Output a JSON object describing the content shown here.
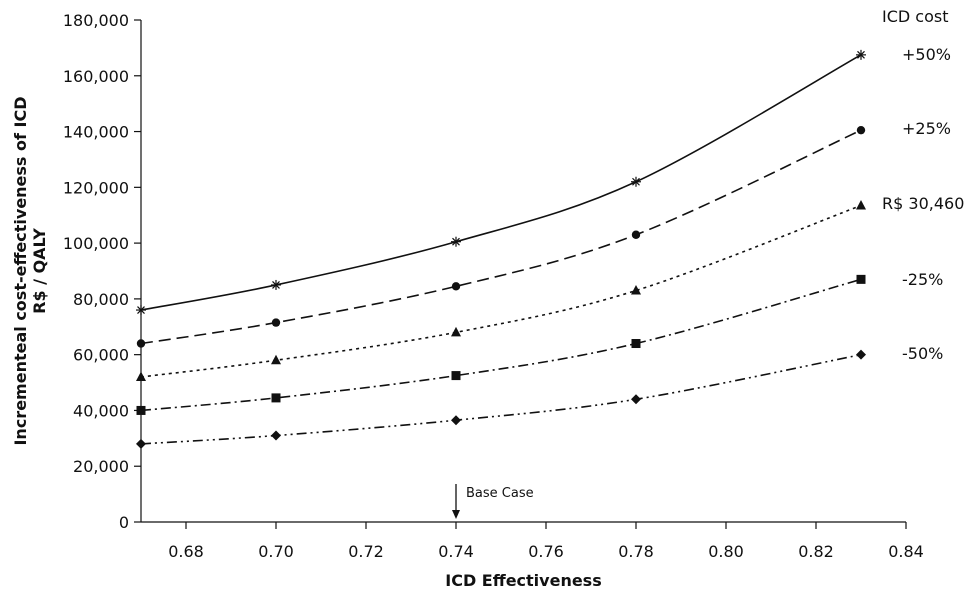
{
  "chart_data": {
    "type": "line",
    "title": "",
    "xlabel": "ICD Effectiveness",
    "ylabel_line1": "Incrementeal cost-effectiveness of ICD",
    "ylabel_line2": "R$ / QALY",
    "xlim": [
      0.67,
      0.84
    ],
    "ylim": [
      0,
      180000
    ],
    "x_ticks": [
      0.68,
      0.7,
      0.72,
      0.74,
      0.76,
      0.78,
      0.8,
      0.82,
      0.84
    ],
    "x_tick_labels": [
      "0.68",
      "0.70",
      "0.72",
      "0.74",
      "0.76",
      "0.78",
      "0.80",
      "0.82",
      "0.84"
    ],
    "y_ticks": [
      0,
      20000,
      40000,
      60000,
      80000,
      100000,
      120000,
      140000,
      160000,
      180000
    ],
    "y_tick_labels": [
      "0",
      "20,000",
      "40,000",
      "60,000",
      "80,000",
      "100,000",
      "120,000",
      "140,000",
      "160,000",
      "180,000"
    ],
    "grid": false,
    "legend_title": "ICD cost",
    "legend_placement": "right, labels at line ends",
    "x": [
      0.67,
      0.7,
      0.74,
      0.78,
      0.83
    ],
    "series": [
      {
        "name": "+50%",
        "marker": "asterisk",
        "dash": "solid",
        "values": [
          76000,
          85000,
          100500,
          122000,
          167500
        ]
      },
      {
        "name": "+25%",
        "marker": "circle",
        "dash": "dashed",
        "values": [
          64000,
          71500,
          84500,
          103000,
          140500
        ]
      },
      {
        "name": "R$ 30,460",
        "marker": "triangle",
        "dash": "dotted",
        "values": [
          52000,
          58000,
          68000,
          83000,
          113500
        ]
      },
      {
        "name": "-25%",
        "marker": "square",
        "dash": "dash-dot",
        "values": [
          40000,
          44500,
          52500,
          64000,
          87000
        ]
      },
      {
        "name": "-50%",
        "marker": "diamond",
        "dash": "dash-dot-dot",
        "values": [
          28000,
          31000,
          36500,
          44000,
          60000
        ]
      }
    ],
    "annotation": {
      "text": "Base Case",
      "x": 0.74
    }
  }
}
